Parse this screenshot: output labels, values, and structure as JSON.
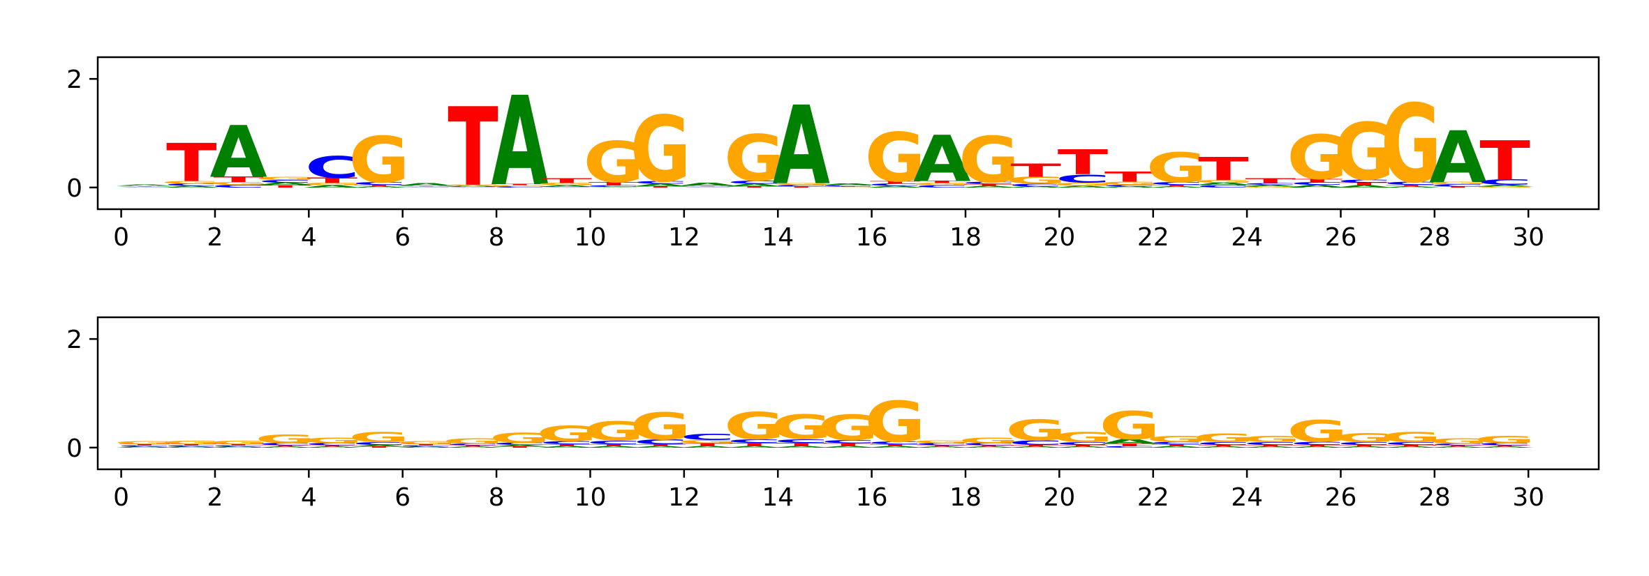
{
  "chart_data": [
    {
      "type": "sequence-logo",
      "xticks": [
        "0",
        "2",
        "4",
        "6",
        "8",
        "10",
        "12",
        "14",
        "16",
        "18",
        "20",
        "22",
        "24",
        "26",
        "28",
        "30"
      ],
      "yticks": [
        "0",
        "2"
      ],
      "xlim": [
        -0.5,
        31.5
      ],
      "ylim": [
        -0.4,
        2.4
      ],
      "alphabet_colors": {
        "A": "#008000",
        "C": "#0000ff",
        "G": "#ffa500",
        "T": "#ff0000"
      },
      "positions": [
        {
          "pos": 0,
          "A": 0.02,
          "C": 0.01,
          "G": 0.01,
          "T": 0.01
        },
        {
          "pos": 1,
          "A": 0.03,
          "C": 0.04,
          "G": 0.05,
          "T": 0.7
        },
        {
          "pos": 2,
          "A": 0.95,
          "C": 0.05,
          "G": 0.05,
          "T": 0.1
        },
        {
          "pos": 3,
          "A": 0.05,
          "C": 0.05,
          "G": 0.06,
          "T": 0.04
        },
        {
          "pos": 4,
          "A": 0.04,
          "C": 0.4,
          "G": 0.04,
          "T": 0.1
        },
        {
          "pos": 5,
          "A": 0.02,
          "C": 0.05,
          "G": 0.85,
          "T": 0.03
        },
        {
          "pos": 6,
          "A": 0.05,
          "C": 0.01,
          "G": 0.01,
          "T": 0.01
        },
        {
          "pos": 7,
          "A": 0.02,
          "C": 0.01,
          "G": 0.02,
          "T": 1.45
        },
        {
          "pos": 8,
          "A": 1.65,
          "C": 0.02,
          "G": 0.02,
          "T": 0.02
        },
        {
          "pos": 9,
          "A": 0.03,
          "C": 0.01,
          "G": 0.04,
          "T": 0.09
        },
        {
          "pos": 10,
          "A": 0.01,
          "C": 0.03,
          "G": 0.75,
          "T": 0.06
        },
        {
          "pos": 11,
          "A": 0.05,
          "C": 0.05,
          "G": 1.22,
          "T": 0.02
        },
        {
          "pos": 12,
          "A": 0.06,
          "C": 0.01,
          "G": 0.01,
          "T": 0.01
        },
        {
          "pos": 13,
          "A": 0.05,
          "C": 0.06,
          "G": 0.85,
          "T": 0.02
        },
        {
          "pos": 14,
          "A": 1.45,
          "C": 0.03,
          "G": 0.03,
          "T": 0.02
        },
        {
          "pos": 15,
          "A": 0.03,
          "C": 0.02,
          "G": 0.01,
          "T": 0.01
        },
        {
          "pos": 16,
          "A": 0.03,
          "C": 0.04,
          "G": 0.9,
          "T": 0.05
        },
        {
          "pos": 17,
          "A": 0.85,
          "C": 0.04,
          "G": 0.04,
          "T": 0.04
        },
        {
          "pos": 18,
          "A": 0.03,
          "C": 0.04,
          "G": 0.85,
          "T": 0.03
        },
        {
          "pos": 19,
          "A": 0.02,
          "C": 0.05,
          "G": 0.13,
          "T": 0.24
        },
        {
          "pos": 20,
          "A": 0.03,
          "C": 0.15,
          "G": 0.06,
          "T": 0.46
        },
        {
          "pos": 21,
          "A": 0.02,
          "C": 0.03,
          "G": 0.06,
          "T": 0.18
        },
        {
          "pos": 22,
          "A": 0.02,
          "C": 0.05,
          "G": 0.55,
          "T": 0.03
        },
        {
          "pos": 23,
          "A": 0.05,
          "C": 0.04,
          "G": 0.05,
          "T": 0.43
        },
        {
          "pos": 24,
          "A": 0.03,
          "C": 0.03,
          "G": 0.02,
          "T": 0.09
        },
        {
          "pos": 25,
          "A": 0.05,
          "C": 0.05,
          "G": 0.82,
          "T": 0.06
        },
        {
          "pos": 26,
          "A": 0.04,
          "C": 0.06,
          "G": 1.05,
          "T": 0.05
        },
        {
          "pos": 27,
          "A": 0.02,
          "C": 0.06,
          "G": 1.45,
          "T": 0.03
        },
        {
          "pos": 28,
          "A": 0.95,
          "C": 0.04,
          "G": 0.04,
          "T": 0.02
        },
        {
          "pos": 29,
          "A": 0.03,
          "C": 0.1,
          "G": 0.02,
          "T": 0.72
        }
      ]
    },
    {
      "type": "sequence-logo",
      "xticks": [
        "0",
        "2",
        "4",
        "6",
        "8",
        "10",
        "12",
        "14",
        "16",
        "18",
        "20",
        "22",
        "24",
        "26",
        "28",
        "30"
      ],
      "yticks": [
        "0",
        "2"
      ],
      "xlim": [
        -0.5,
        31.5
      ],
      "ylim": [
        -0.4,
        2.4
      ],
      "alphabet_colors": {
        "A": "#008000",
        "C": "#0000ff",
        "G": "#ffa500",
        "T": "#ff0000"
      },
      "positions": [
        {
          "pos": 0,
          "A": 0.02,
          "C": 0.02,
          "G": 0.06,
          "T": 0.02
        },
        {
          "pos": 1,
          "A": 0.02,
          "C": 0.02,
          "G": 0.07,
          "T": 0.02
        },
        {
          "pos": 2,
          "A": 0.02,
          "C": 0.02,
          "G": 0.07,
          "T": 0.02
        },
        {
          "pos": 3,
          "A": 0.02,
          "C": 0.04,
          "G": 0.16,
          "T": 0.02
        },
        {
          "pos": 4,
          "A": 0.02,
          "C": 0.04,
          "G": 0.1,
          "T": 0.02
        },
        {
          "pos": 5,
          "A": 0.03,
          "C": 0.05,
          "G": 0.18,
          "T": 0.02
        },
        {
          "pos": 6,
          "A": 0.02,
          "C": 0.02,
          "G": 0.06,
          "T": 0.02
        },
        {
          "pos": 7,
          "A": 0.02,
          "C": 0.03,
          "G": 0.1,
          "T": 0.02
        },
        {
          "pos": 8,
          "A": 0.03,
          "C": 0.04,
          "G": 0.18,
          "T": 0.02
        },
        {
          "pos": 9,
          "A": 0.03,
          "C": 0.06,
          "G": 0.28,
          "T": 0.03
        },
        {
          "pos": 10,
          "A": 0.03,
          "C": 0.07,
          "G": 0.35,
          "T": 0.03
        },
        {
          "pos": 11,
          "A": 0.03,
          "C": 0.09,
          "G": 0.5,
          "T": 0.03
        },
        {
          "pos": 12,
          "A": 0.03,
          "C": 0.12,
          "G": 0.06,
          "T": 0.05
        },
        {
          "pos": 13,
          "A": 0.03,
          "C": 0.07,
          "G": 0.5,
          "T": 0.06
        },
        {
          "pos": 14,
          "A": 0.03,
          "C": 0.07,
          "G": 0.45,
          "T": 0.06
        },
        {
          "pos": 15,
          "A": 0.03,
          "C": 0.06,
          "G": 0.47,
          "T": 0.05
        },
        {
          "pos": 16,
          "A": 0.03,
          "C": 0.05,
          "G": 0.75,
          "T": 0.03
        },
        {
          "pos": 17,
          "A": 0.02,
          "C": 0.04,
          "G": 0.05,
          "T": 0.02
        },
        {
          "pos": 18,
          "A": 0.02,
          "C": 0.04,
          "G": 0.1,
          "T": 0.02
        },
        {
          "pos": 19,
          "A": 0.02,
          "C": 0.08,
          "G": 0.38,
          "T": 0.03
        },
        {
          "pos": 20,
          "A": 0.02,
          "C": 0.05,
          "G": 0.18,
          "T": 0.03
        },
        {
          "pos": 21,
          "A": 0.09,
          "C": 0.03,
          "G": 0.52,
          "T": 0.04
        },
        {
          "pos": 22,
          "A": 0.03,
          "C": 0.04,
          "G": 0.12,
          "T": 0.03
        },
        {
          "pos": 23,
          "A": 0.02,
          "C": 0.05,
          "G": 0.16,
          "T": 0.03
        },
        {
          "pos": 24,
          "A": 0.02,
          "C": 0.05,
          "G": 0.12,
          "T": 0.03
        },
        {
          "pos": 25,
          "A": 0.02,
          "C": 0.06,
          "G": 0.4,
          "T": 0.03
        },
        {
          "pos": 26,
          "A": 0.02,
          "C": 0.05,
          "G": 0.17,
          "T": 0.03
        },
        {
          "pos": 27,
          "A": 0.02,
          "C": 0.05,
          "G": 0.18,
          "T": 0.03
        },
        {
          "pos": 28,
          "A": 0.02,
          "C": 0.03,
          "G": 0.1,
          "T": 0.02
        },
        {
          "pos": 29,
          "A": 0.02,
          "C": 0.04,
          "G": 0.13,
          "T": 0.02
        }
      ]
    }
  ]
}
